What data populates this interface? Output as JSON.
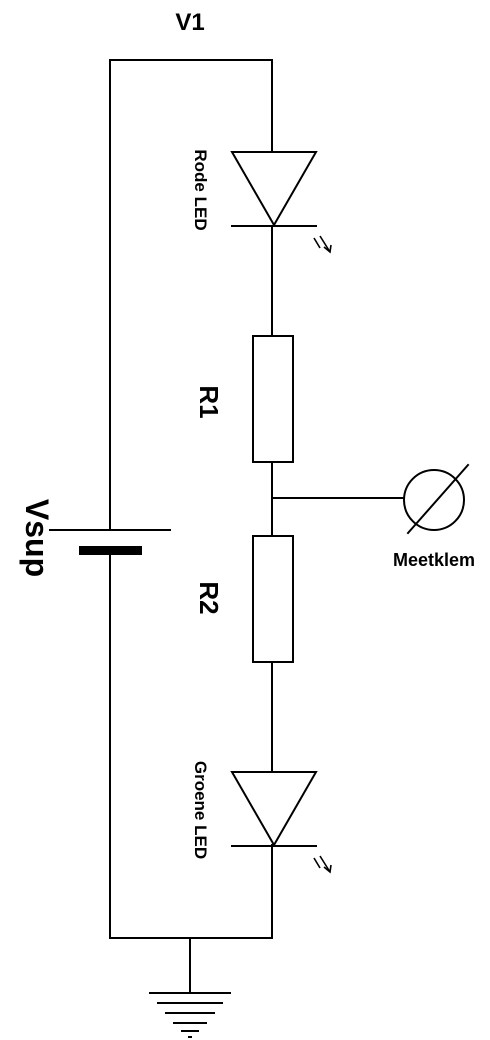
{
  "circuit": {
    "node_label": "V1",
    "supply_label": "Vsup",
    "red_led_label": "Rode LED",
    "r1_label": "R1",
    "r2_label": "R2",
    "green_led_label": "Groene LED",
    "probe_label": "Meetklem"
  },
  "components": [
    {
      "id": "supply",
      "kind": "battery",
      "name": "Vsup"
    },
    {
      "id": "led-red",
      "kind": "led",
      "name": "Rode LED"
    },
    {
      "id": "r1",
      "kind": "resistor",
      "name": "R1"
    },
    {
      "id": "r2",
      "kind": "resistor",
      "name": "R2"
    },
    {
      "id": "led-green",
      "kind": "led",
      "name": "Groene LED"
    },
    {
      "id": "probe",
      "kind": "measurement-terminal",
      "name": "Meetklem"
    },
    {
      "id": "ground",
      "kind": "ground",
      "name": ""
    }
  ],
  "connections": [
    [
      "supply+",
      "led-red.anode"
    ],
    [
      "led-red.cathode",
      "r1"
    ],
    [
      "r1",
      "r2"
    ],
    [
      "r1-r2-node",
      "probe"
    ],
    [
      "r2",
      "led-green.anode"
    ],
    [
      "led-green.cathode",
      "ground"
    ],
    [
      "supply-",
      "ground"
    ]
  ]
}
